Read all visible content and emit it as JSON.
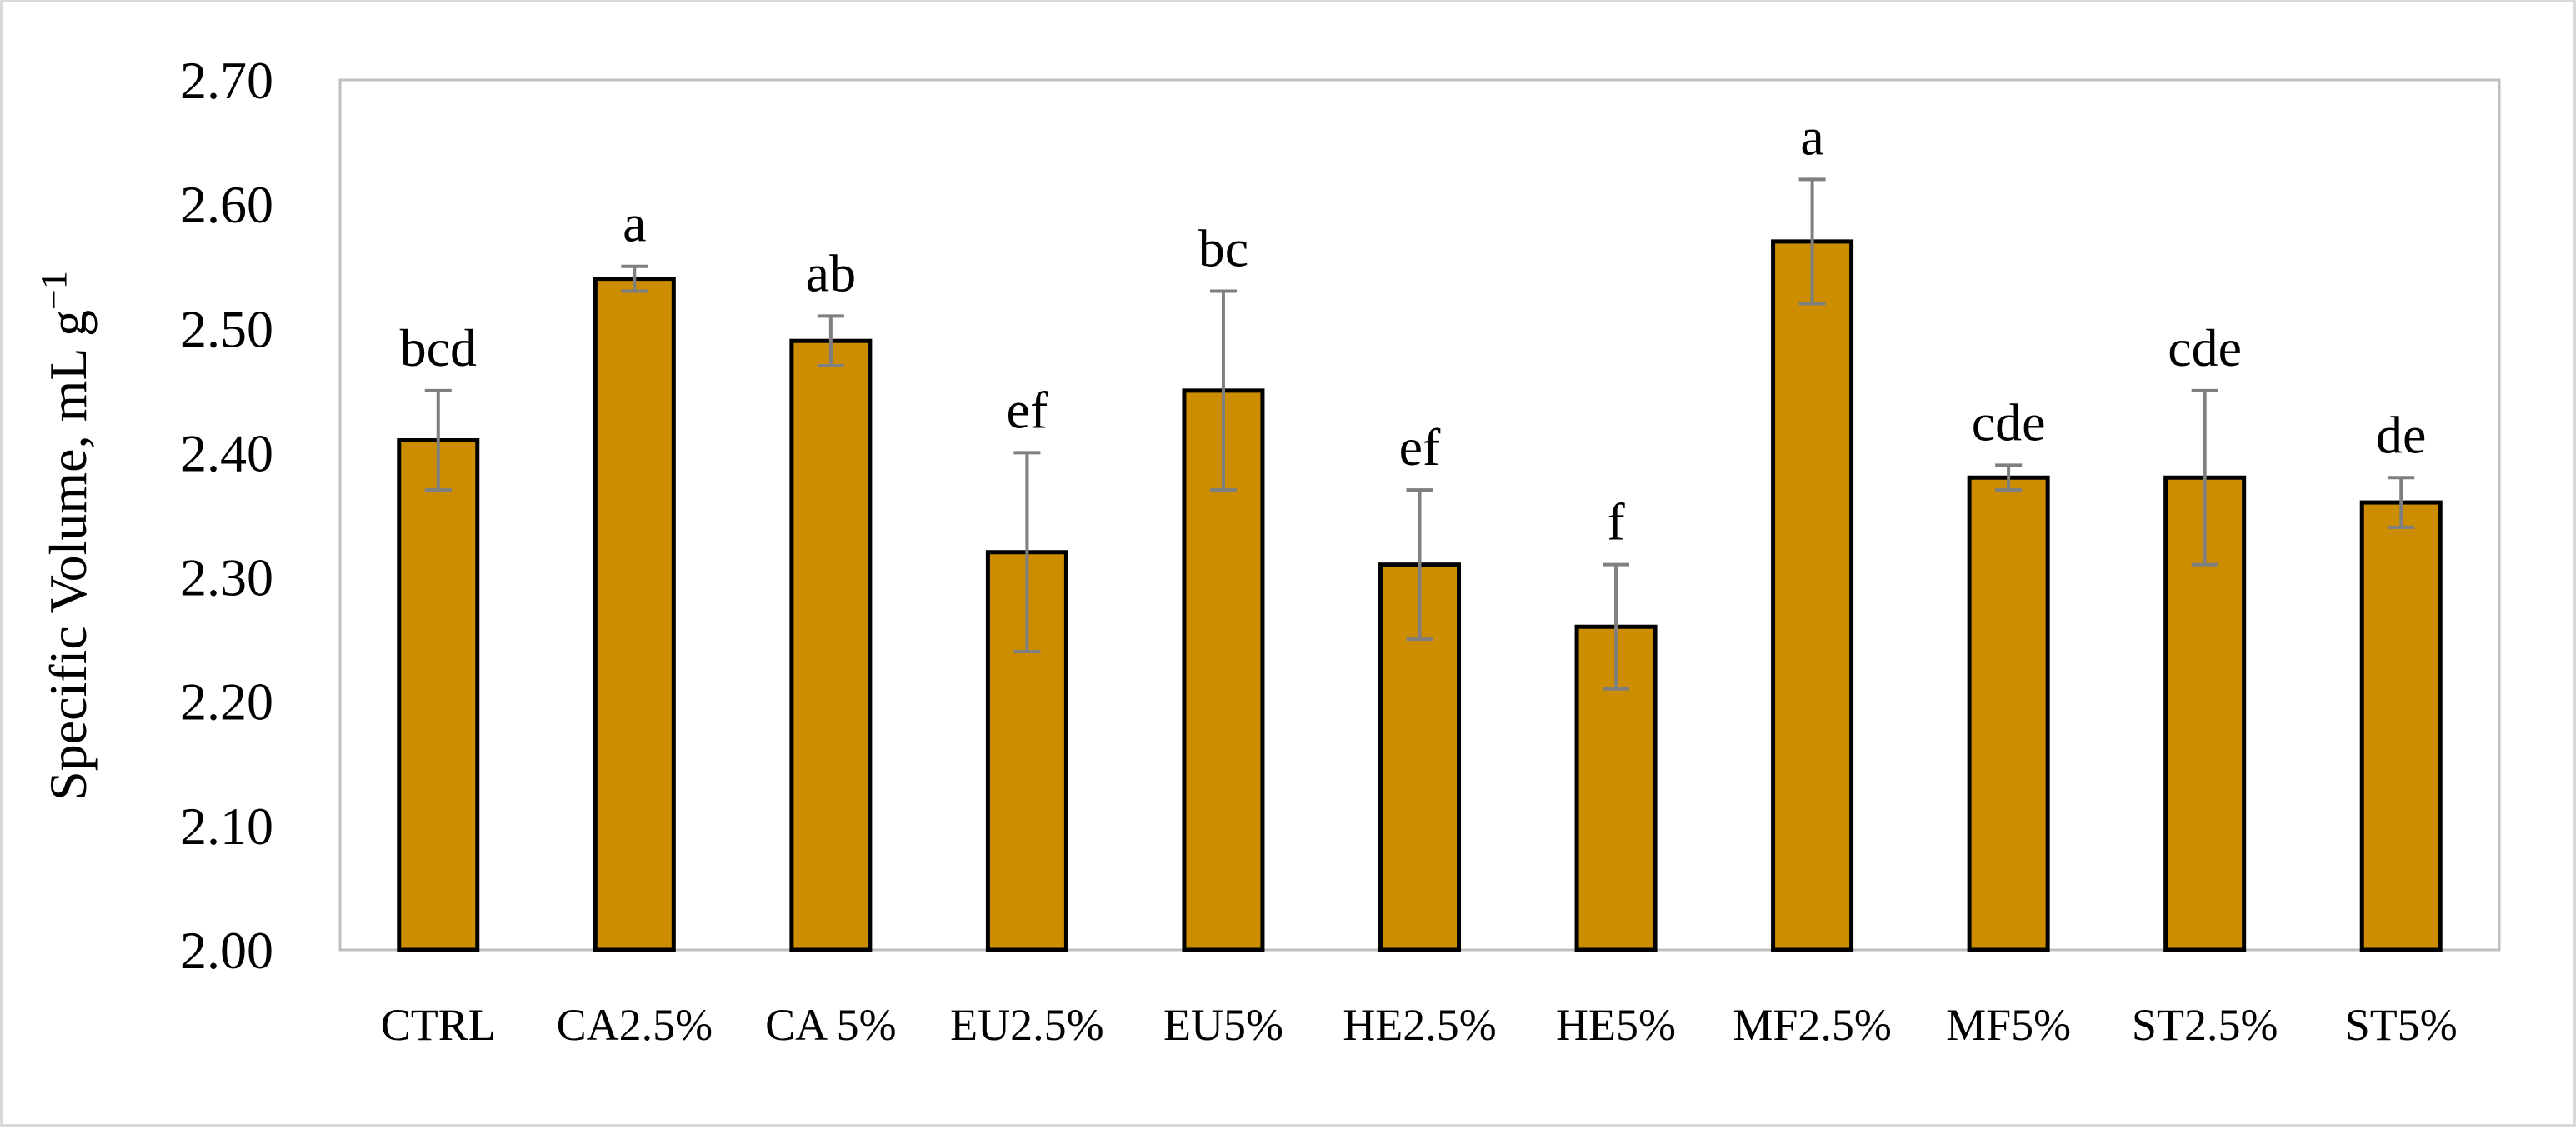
{
  "chart_data": {
    "type": "bar",
    "title": "",
    "xlabel": "",
    "ylabel": "Specific Volume, mL g",
    "ylabel_superscript": "−1",
    "ylim": [
      2.0,
      2.7
    ],
    "yticks": [
      "2.00",
      "2.10",
      "2.20",
      "2.30",
      "2.40",
      "2.50",
      "2.60",
      "2.70"
    ],
    "grid": false,
    "legend": "none",
    "categories": [
      "CTRL",
      "CA2.5%",
      "CA 5%",
      "EU2.5%",
      "EU5%",
      "HE2.5%",
      "HE5%",
      "MF2.5%",
      "MF5%",
      "ST2.5%",
      "ST5%"
    ],
    "values": [
      2.41,
      2.54,
      2.49,
      2.32,
      2.45,
      2.31,
      2.26,
      2.57,
      2.38,
      2.38,
      2.36
    ],
    "errors": [
      0.04,
      0.01,
      0.02,
      0.08,
      0.08,
      0.06,
      0.05,
      0.05,
      0.01,
      0.07,
      0.02
    ],
    "significance_letters": [
      "bcd",
      "a",
      "ab",
      "ef",
      "bc",
      "ef",
      "f",
      "a",
      "cde",
      "cde",
      "de"
    ],
    "colors": {
      "bar_fill": "#CC8E00",
      "bar_stroke": "#000000",
      "error_bar": "#7f7f7f",
      "plot_border": "#bfbfbf"
    }
  }
}
